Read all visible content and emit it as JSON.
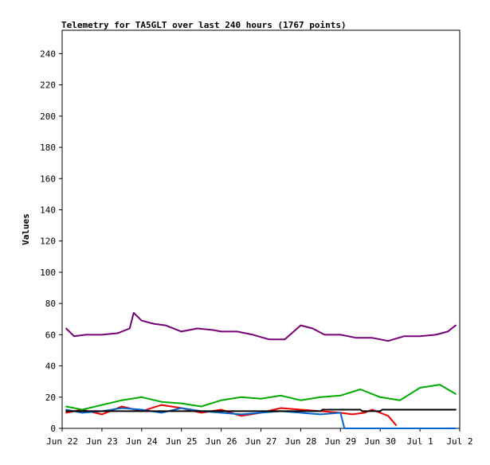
{
  "chart_data": {
    "type": "line",
    "title": "Telemetry for TA5GLT over last 240 hours (1767 points)",
    "xlabel": "",
    "ylabel": "Values",
    "x_ticks": [
      "Jun 22",
      "Jun 23",
      "Jun 24",
      "Jun 25",
      "Jun 26",
      "Jun 27",
      "Jun 28",
      "Jun 29",
      "Jun 30",
      "Jul 1",
      "Jul 2"
    ],
    "xlim": [
      0,
      10
    ],
    "ylim": [
      0,
      255
    ],
    "y_ticks": [
      0,
      20,
      40,
      60,
      80,
      100,
      120,
      140,
      160,
      180,
      200,
      220,
      240
    ],
    "grid": false,
    "legend": "none",
    "series": [
      {
        "color": "#ee0000",
        "x": [
          0.1,
          0.5,
          1,
          1.5,
          2,
          2.5,
          3,
          3.5,
          4,
          4.5,
          5,
          5.5,
          6,
          6.5,
          7,
          7.3,
          7.6,
          7.8,
          8.2,
          8.4
        ],
        "values": [
          10,
          12,
          9,
          14,
          11,
          15,
          13,
          10,
          12,
          8,
          10,
          13,
          12,
          11,
          10,
          9,
          10,
          12,
          8,
          2
        ]
      },
      {
        "color": "#00aa00",
        "x": [
          0.1,
          0.5,
          1,
          1.5,
          2,
          2.5,
          3,
          3.5,
          4,
          4.5,
          5,
          5.5,
          6,
          6.5,
          7,
          7.5,
          8,
          8.5,
          9,
          9.5,
          9.9
        ],
        "values": [
          14,
          12,
          15,
          18,
          20,
          17,
          16,
          14,
          18,
          20,
          19,
          21,
          18,
          20,
          21,
          25,
          20,
          18,
          26,
          28,
          22
        ]
      },
      {
        "color": "#0066cc",
        "x": [
          0.1,
          0.5,
          1,
          1.5,
          2,
          2.5,
          3,
          3.5,
          4,
          4.5,
          5,
          5.5,
          6,
          6.5,
          7,
          7.1,
          8,
          9,
          9.9
        ],
        "values": [
          12,
          10,
          11,
          13,
          12,
          10,
          13,
          11,
          10,
          9,
          10,
          11,
          10,
          9,
          10,
          0,
          0,
          0,
          0
        ]
      },
      {
        "color": "#770077",
        "x": [
          0.1,
          0.3,
          0.6,
          1,
          1.4,
          1.7,
          1.8,
          2,
          2.3,
          2.6,
          3,
          3.4,
          3.8,
          4,
          4.4,
          4.8,
          5.2,
          5.6,
          6,
          6.3,
          6.6,
          7,
          7.4,
          7.8,
          8.2,
          8.6,
          9,
          9.4,
          9.7,
          9.9
        ],
        "values": [
          64,
          59,
          60,
          60,
          61,
          64,
          74,
          69,
          67,
          66,
          62,
          64,
          63,
          62,
          62,
          60,
          57,
          57,
          66,
          64,
          60,
          60,
          58,
          58,
          56,
          59,
          59,
          60,
          62,
          66
        ]
      },
      {
        "color": "#000000",
        "x": [
          0.1,
          1,
          2,
          3,
          4,
          5,
          6,
          6.5,
          6.55,
          7.5,
          7.55,
          8,
          8.05,
          9,
          9.9
        ],
        "values": [
          11,
          11,
          11,
          11,
          11,
          11,
          11,
          11,
          12,
          12,
          11,
          11,
          12,
          12,
          12
        ]
      }
    ]
  }
}
